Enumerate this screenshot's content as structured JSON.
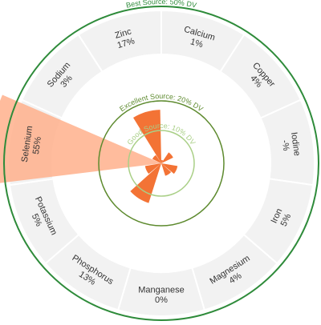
{
  "chart_data": {
    "type": "radial-bar",
    "title": "",
    "categories": [
      "Calcium",
      "Copper",
      "Iodine",
      "Iron",
      "Magnesium",
      "Manganese",
      "Phosphorus",
      "Potassium",
      "Selenium",
      "Sodium",
      "Zinc"
    ],
    "values": [
      1,
      4,
      null,
      5,
      4,
      0,
      13,
      5,
      55,
      3,
      17
    ],
    "value_labels": [
      "1%",
      "4%",
      "-%",
      "5%",
      "4%",
      "0%",
      "13%",
      "5%",
      "55%",
      "3%",
      "17%"
    ],
    "unit": "% DV",
    "thresholds": [
      {
        "label": "Good Source: 10% DV",
        "value": 10,
        "color": "#a9cf86"
      },
      {
        "label": "Excellent Source: 20% DV",
        "value": 20,
        "color": "#5d8a2e"
      },
      {
        "label": "Best Source: 50% DV",
        "value": 50,
        "color": "#2e8b3a"
      }
    ],
    "bar_color_light": "#ffb08c",
    "bar_color_dark": "#f26b2a",
    "segment_fill": "#f2f2f2",
    "segment_stroke": "#ffffff",
    "outer_ring_color": "#2e8b3a"
  }
}
